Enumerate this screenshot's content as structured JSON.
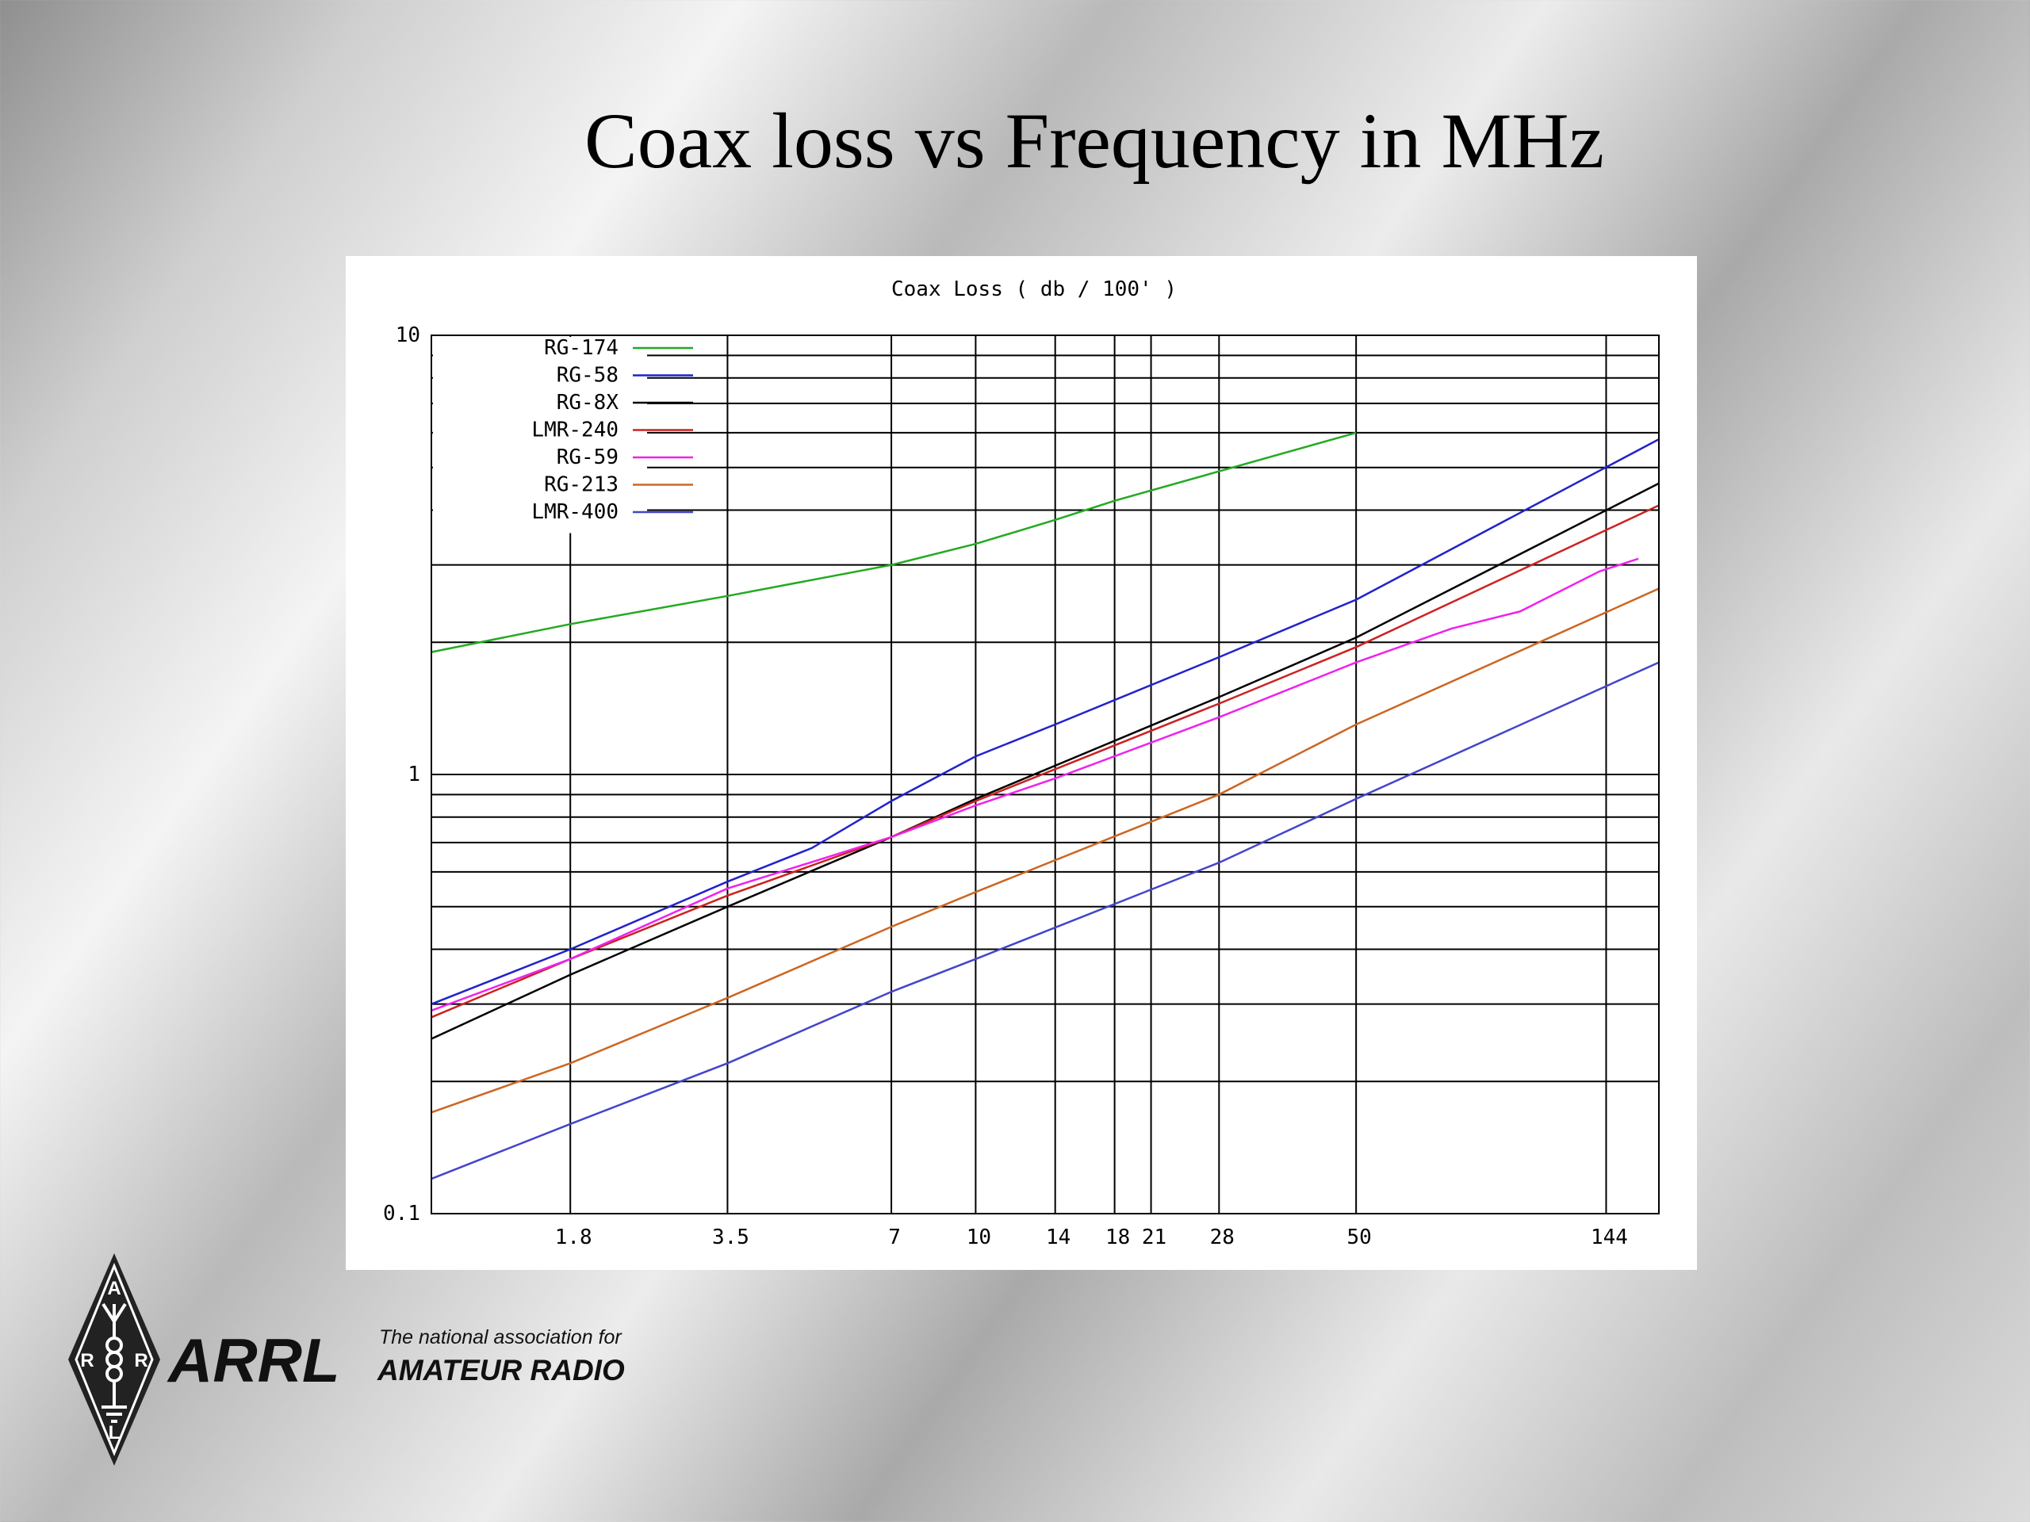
{
  "slide": {
    "title": "Coax loss vs Frequency in MHz"
  },
  "logo": {
    "name": "ARRL",
    "tagline_line1": "The national association for",
    "tagline_line2": "AMATEUR RADIO",
    "diamond_letters": [
      "A",
      "R",
      "R",
      "L"
    ]
  },
  "chart_data": {
    "type": "line",
    "title": "Coax Loss ( db / 100' )",
    "xlabel": "",
    "ylabel": "",
    "x_scale": "log",
    "y_scale": "log",
    "xlim": [
      1,
      180
    ],
    "ylim": [
      0.1,
      10
    ],
    "x_ticks": [
      1.8,
      3.5,
      7,
      10,
      14,
      18,
      21,
      28,
      50,
      144
    ],
    "x_tick_labels": [
      "1.8",
      "3.5",
      "7",
      "10",
      "14",
      "18",
      "21",
      "28",
      "50",
      "144"
    ],
    "y_tick_labels": [
      {
        "value": 10,
        "label": "10"
      },
      {
        "value": 1,
        "label": "1"
      },
      {
        "value": 0.1,
        "label": "0.1"
      }
    ],
    "y_gridlines": [
      0.2,
      0.3,
      0.4,
      0.5,
      0.6,
      0.7,
      0.8,
      0.9,
      2,
      3,
      4,
      5,
      6,
      7,
      8,
      9
    ],
    "grid": true,
    "legend_position": "top-left",
    "series": [
      {
        "name": "RG-174",
        "color": "#22aa22",
        "points": [
          [
            1,
            1.9
          ],
          [
            1.8,
            2.2
          ],
          [
            3.5,
            2.55
          ],
          [
            7,
            3.0
          ],
          [
            10,
            3.35
          ],
          [
            14,
            3.8
          ],
          [
            18,
            4.2
          ],
          [
            28,
            4.9
          ],
          [
            50,
            6.0
          ]
        ]
      },
      {
        "name": "RG-58",
        "color": "#2222cc",
        "points": [
          [
            1,
            0.3
          ],
          [
            1.8,
            0.4
          ],
          [
            3.5,
            0.57
          ],
          [
            5,
            0.68
          ],
          [
            7,
            0.87
          ],
          [
            10,
            1.1
          ],
          [
            14,
            1.3
          ],
          [
            28,
            1.85
          ],
          [
            50,
            2.5
          ],
          [
            180,
            5.8
          ]
        ]
      },
      {
        "name": "RG-8X",
        "color": "#000000",
        "points": [
          [
            1,
            0.25
          ],
          [
            1.8,
            0.35
          ],
          [
            3.5,
            0.5
          ],
          [
            7,
            0.72
          ],
          [
            10,
            0.88
          ],
          [
            28,
            1.5
          ],
          [
            50,
            2.05
          ],
          [
            180,
            4.6
          ]
        ]
      },
      {
        "name": "LMR-240",
        "color": "#cc2222",
        "points": [
          [
            1,
            0.28
          ],
          [
            1.8,
            0.38
          ],
          [
            3.5,
            0.53
          ],
          [
            7,
            0.72
          ],
          [
            10,
            0.87
          ],
          [
            28,
            1.45
          ],
          [
            50,
            1.95
          ],
          [
            180,
            4.1
          ]
        ]
      },
      {
        "name": "RG-59",
        "color": "#ee22ee",
        "points": [
          [
            1,
            0.29
          ],
          [
            1.8,
            0.38
          ],
          [
            3.5,
            0.55
          ],
          [
            7,
            0.72
          ],
          [
            10,
            0.85
          ],
          [
            14,
            0.98
          ],
          [
            28,
            1.35
          ],
          [
            50,
            1.8
          ],
          [
            75,
            2.15
          ],
          [
            100,
            2.35
          ],
          [
            140,
            2.9
          ],
          [
            165,
            3.1
          ]
        ]
      },
      {
        "name": "RG-213",
        "color": "#cc6622",
        "points": [
          [
            1,
            0.17
          ],
          [
            1.8,
            0.22
          ],
          [
            3.5,
            0.31
          ],
          [
            7,
            0.45
          ],
          [
            10,
            0.54
          ],
          [
            28,
            0.9
          ],
          [
            50,
            1.3
          ],
          [
            180,
            2.65
          ]
        ]
      },
      {
        "name": "LMR-400",
        "color": "#4444cc",
        "points": [
          [
            1,
            0.12
          ],
          [
            1.8,
            0.16
          ],
          [
            3.5,
            0.22
          ],
          [
            7,
            0.32
          ],
          [
            10,
            0.38
          ],
          [
            28,
            0.63
          ],
          [
            50,
            0.88
          ],
          [
            180,
            1.8
          ]
        ]
      }
    ]
  }
}
